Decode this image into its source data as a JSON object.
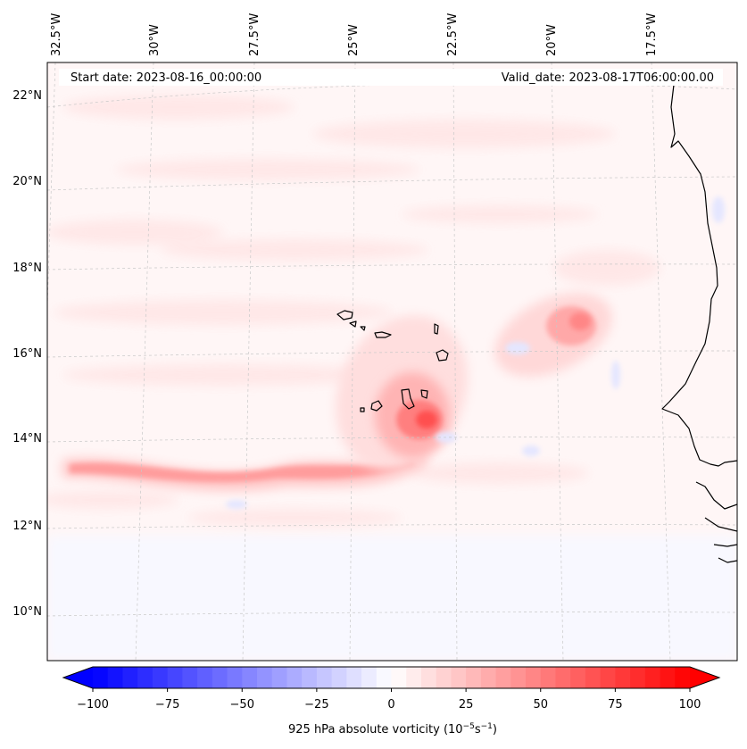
{
  "header": {
    "start_date": "Start date: 2023-08-16_00:00:00",
    "valid_date": "Valid_date: 2023-08-17T06:00:00.00"
  },
  "map": {
    "projection": "lambert-conformal",
    "lon_labels": [
      "32.5°W",
      "30°W",
      "27.5°W",
      "25°W",
      "22.5°W",
      "20°W",
      "17.5°W"
    ],
    "lat_labels": [
      "22°N",
      "20°N",
      "18°N",
      "16°N",
      "14°N",
      "12°N",
      "10°N"
    ],
    "gridlines": "dashed-light-grey",
    "coastline_color": "#000000"
  },
  "field": {
    "variable": "925 hPa absolute vorticity",
    "units": "10^-5 s^-1",
    "features": [
      {
        "label": "vorticity-band",
        "description": "zonal positive band along ~13.3°N from 32°W to 23°W"
      },
      {
        "label": "vorticity-max-cape-verde",
        "description": "maximum south of Cape Verde islands near 14.5°N 23°W"
      },
      {
        "label": "vorticity-max-east",
        "description": "secondary maximum near 16.5°N 19.5°W"
      }
    ]
  },
  "colorbar": {
    "ticks": [
      "−100",
      "−75",
      "−50",
      "−25",
      "0",
      "25",
      "50",
      "75",
      "100"
    ],
    "label": "925 hPa absolute vorticity (10",
    "label_exp1": "−5",
    "label_mid": "s",
    "label_exp2": "−1",
    "label_end": ")",
    "min": -100,
    "max": 100,
    "cmap": "bwr",
    "extend": "both",
    "color_neg": "#0000ff",
    "color_zero": "#ffffff",
    "color_pos": "#ff0000"
  }
}
